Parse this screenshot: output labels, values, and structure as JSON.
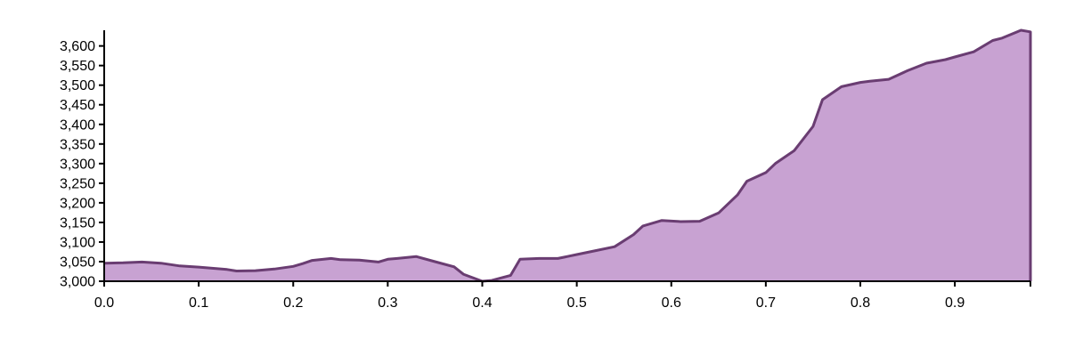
{
  "chart_data": {
    "type": "area",
    "title": "",
    "xlabel": "",
    "ylabel": "",
    "xlim": [
      0,
      0.98
    ],
    "ylim": [
      3000,
      3640
    ],
    "x_ticks": [
      "0.0",
      "0.1",
      "0.2",
      "0.3",
      "0.4",
      "0.5",
      "0.6",
      "0.7",
      "0.8",
      "0.9"
    ],
    "y_ticks": [
      "3,000",
      "3,050",
      "3,100",
      "3,150",
      "3,200",
      "3,250",
      "3,300",
      "3,350",
      "3,400",
      "3,450",
      "3,500",
      "3,550",
      "3,600"
    ],
    "grid": false,
    "colors": {
      "fill": "#c8a2d2",
      "stroke": "#6a3d72"
    },
    "series": [
      {
        "x": [
          0.0,
          0.02,
          0.04,
          0.06,
          0.08,
          0.1,
          0.12,
          0.13,
          0.14,
          0.16,
          0.18,
          0.2,
          0.21,
          0.22,
          0.24,
          0.25,
          0.27,
          0.29,
          0.3,
          0.31,
          0.33,
          0.35,
          0.37,
          0.38,
          0.4,
          0.41,
          0.43,
          0.44,
          0.46,
          0.48,
          0.5,
          0.52,
          0.54,
          0.56,
          0.57,
          0.59,
          0.61,
          0.63,
          0.65,
          0.67,
          0.68,
          0.7,
          0.71,
          0.73,
          0.75,
          0.76,
          0.78,
          0.8,
          0.81,
          0.83,
          0.85,
          0.87,
          0.89,
          0.9,
          0.92,
          0.94,
          0.95,
          0.97,
          0.98
        ],
        "values": [
          3046,
          3047,
          3049,
          3046,
          3039,
          3036,
          3032,
          3030,
          3026,
          3027,
          3031,
          3038,
          3045,
          3053,
          3058,
          3055,
          3054,
          3049,
          3056,
          3058,
          3063,
          3050,
          3037,
          3018,
          3000,
          3002,
          3015,
          3056,
          3058,
          3058,
          3068,
          3078,
          3088,
          3119,
          3141,
          3155,
          3152,
          3153,
          3174,
          3220,
          3255,
          3277,
          3300,
          3333,
          3395,
          3463,
          3496,
          3507,
          3510,
          3515,
          3537,
          3556,
          3565,
          3572,
          3585,
          3614,
          3620,
          3640,
          3636
        ]
      }
    ]
  }
}
